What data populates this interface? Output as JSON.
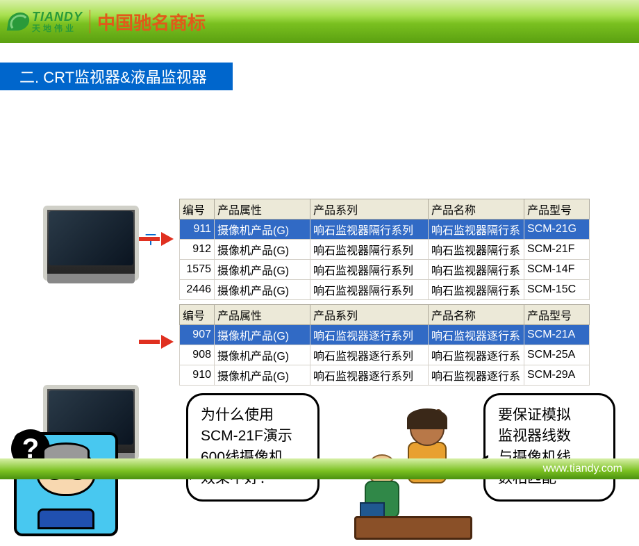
{
  "header": {
    "logo_en": "TIANDY",
    "logo_cn": "天地伟业",
    "brand_cn": "中国驰名商标"
  },
  "section_title": "二. CRT监视器&液晶监视器",
  "label_t": "〒",
  "table_a": {
    "headers": [
      "编号",
      "产品属性",
      "产品系列",
      "产品名称",
      "产品型号"
    ],
    "rows": [
      {
        "sel": true,
        "c": [
          "911",
          "摄像机产品(G)",
          "响石监视器隔行系列",
          "响石监视器隔行系",
          "SCM-21G"
        ]
      },
      {
        "sel": false,
        "c": [
          "912",
          "摄像机产品(G)",
          "响石监视器隔行系列",
          "响石监视器隔行系",
          "SCM-21F"
        ]
      },
      {
        "sel": false,
        "c": [
          "1575",
          "摄像机产品(G)",
          "响石监视器隔行系列",
          "响石监视器隔行系",
          "SCM-14F"
        ]
      },
      {
        "sel": false,
        "c": [
          "2446",
          "摄像机产品(G)",
          "响石监视器隔行系列",
          "响石监视器隔行系",
          "SCM-15C"
        ]
      }
    ]
  },
  "table_b": {
    "headers": [
      "编号",
      "产品属性",
      "产品系列",
      "产品名称",
      "产品型号"
    ],
    "rows": [
      {
        "sel": true,
        "c": [
          "907",
          "摄像机产品(G)",
          "响石监视器逐行系列",
          "响石监视器逐行系",
          "SCM-21A"
        ]
      },
      {
        "sel": false,
        "c": [
          "908",
          "摄像机产品(G)",
          "响石监视器逐行系列",
          "响石监视器逐行系",
          "SCM-25A"
        ]
      },
      {
        "sel": false,
        "c": [
          "910",
          "摄像机产品(G)",
          "响石监视器逐行系列",
          "响石监视器逐行系",
          "SCM-29A"
        ]
      }
    ]
  },
  "bubble_l": [
    "为什么使用",
    "SCM-21F演示",
    "600线摄像机",
    "效果不好？"
  ],
  "bubble_r": [
    "要保证模拟",
    "监视器线数",
    "与摄像机线",
    "数相匹配"
  ],
  "qmark": "?",
  "footer_url": "www.tiandy.com"
}
